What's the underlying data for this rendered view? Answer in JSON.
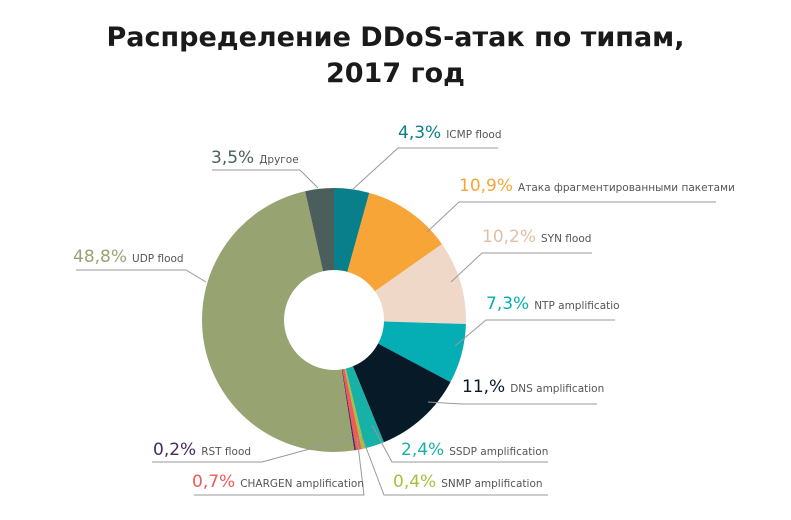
{
  "chart_data": {
    "type": "pie",
    "donut": true,
    "title_lines": [
      "Распределение DDoS-атак по типам,",
      "2017 год"
    ],
    "slices": [
      {
        "label": "ICMP flood",
        "value": 4.3,
        "value_text": "4,3%",
        "color": "#0a7f8c"
      },
      {
        "label": "Атака фрагментированными пакетами",
        "value": 10.9,
        "value_text": "10,9%",
        "color": "#f7a537"
      },
      {
        "label": "SYN flood",
        "value": 10.2,
        "value_text": "10,2%",
        "color": "#efd8c7"
      },
      {
        "label": "NTP amplificatio",
        "value": 7.3,
        "value_text": "7,3%",
        "color": "#05aeb5"
      },
      {
        "label": "DNS amplification",
        "value": 11.0,
        "value_text": "11,%",
        "color": "#071a28"
      },
      {
        "label": "SSDP amplification",
        "value": 2.4,
        "value_text": "2,4%",
        "color": "#17b1a8"
      },
      {
        "label": "SNMP amplification",
        "value": 0.4,
        "value_text": "0,4%",
        "color": "#a8c13c"
      },
      {
        "label": "CHARGEN amplification",
        "value": 0.7,
        "value_text": "0,7%",
        "color": "#ef5b58"
      },
      {
        "label": "RST flood",
        "value": 0.2,
        "value_text": "0,2%",
        "color": "#4a2a5c"
      },
      {
        "label": "UDP flood",
        "value": 48.8,
        "value_text": "48,8%",
        "color": "#98a372"
      },
      {
        "label": "Другое",
        "value": 3.5,
        "value_text": "3,5%",
        "color": "#4a5f5b"
      }
    ],
    "legend": "callouts"
  }
}
